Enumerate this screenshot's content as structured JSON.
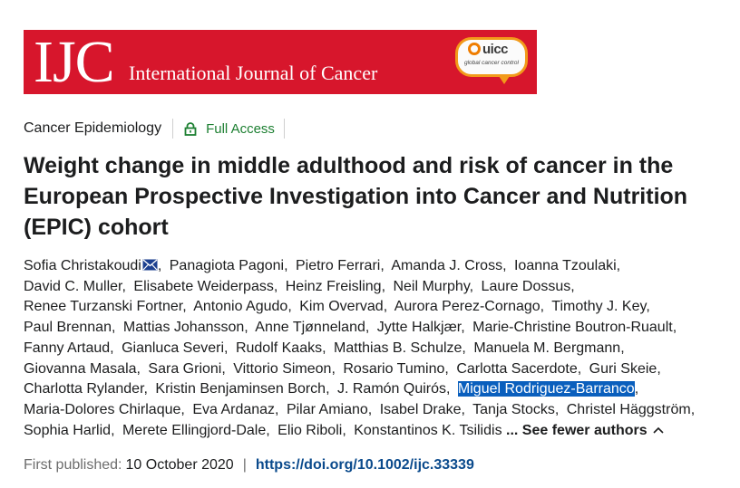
{
  "journal": {
    "logo": "IJC",
    "name": "International Journal of Cancer",
    "partner_logo": "uicc",
    "partner_tagline": "global cancer control"
  },
  "meta": {
    "category": "Cancer Epidemiology",
    "access": "Full Access"
  },
  "article": {
    "title": "Weight change in middle adulthood and risk of cancer in the European Prospective Investigation into Cancer and Nutrition (EPIC) cohort"
  },
  "authors": [
    "Sofia Christakoudi",
    "Panagiota Pagoni",
    "Pietro Ferrari",
    "Amanda J. Cross",
    "Ioanna Tzoulaki",
    "David C. Muller",
    "Elisabete Weiderpass",
    "Heinz Freisling",
    "Neil Murphy",
    "Laure Dossus",
    "Renee Turzanski Fortner",
    "Antonio Agudo",
    "Kim Overvad",
    "Aurora Perez-Cornago",
    "Timothy J. Key",
    "Paul Brennan",
    "Mattias Johansson",
    "Anne Tjønneland",
    "Jytte Halkjær",
    "Marie-Christine Boutron-Ruault",
    "Fanny Artaud",
    "Gianluca Severi",
    "Rudolf Kaaks",
    "Matthias B. Schulze",
    "Manuela M. Bergmann",
    "Giovanna Masala",
    "Sara Grioni",
    "Vittorio Simeon",
    "Rosario Tumino",
    "Carlotta Sacerdote",
    "Guri Skeie",
    "Charlotta Rylander",
    "Kristin Benjaminsen Borch",
    "J. Ramón Quirós",
    "Miguel Rodriguez-Barranco",
    "Maria-Dolores Chirlaque",
    "Eva Ardanaz",
    "Pilar Amiano",
    "Isabel Drake",
    "Tanja Stocks",
    "Christel Häggström",
    "Sophia Harlid",
    "Merete Ellingjord-Dale",
    "Elio Riboli",
    "Konstantinos K. Tsilidis"
  ],
  "selected_author": "Miguel Rodriguez-Barranco",
  "toggle_label": "... See fewer authors",
  "published": {
    "label": "First published:",
    "date": "10 October 2020",
    "separator": "|",
    "doi": "https://doi.org/10.1002/ijc.33339"
  },
  "colors": {
    "banner": "#d7162c",
    "access": "#1c7f31",
    "doi": "#0a4a8c",
    "selection": "#0a5fbd"
  },
  "icons": [
    "lock-icon",
    "mail-icon",
    "chevron-up-icon"
  ]
}
